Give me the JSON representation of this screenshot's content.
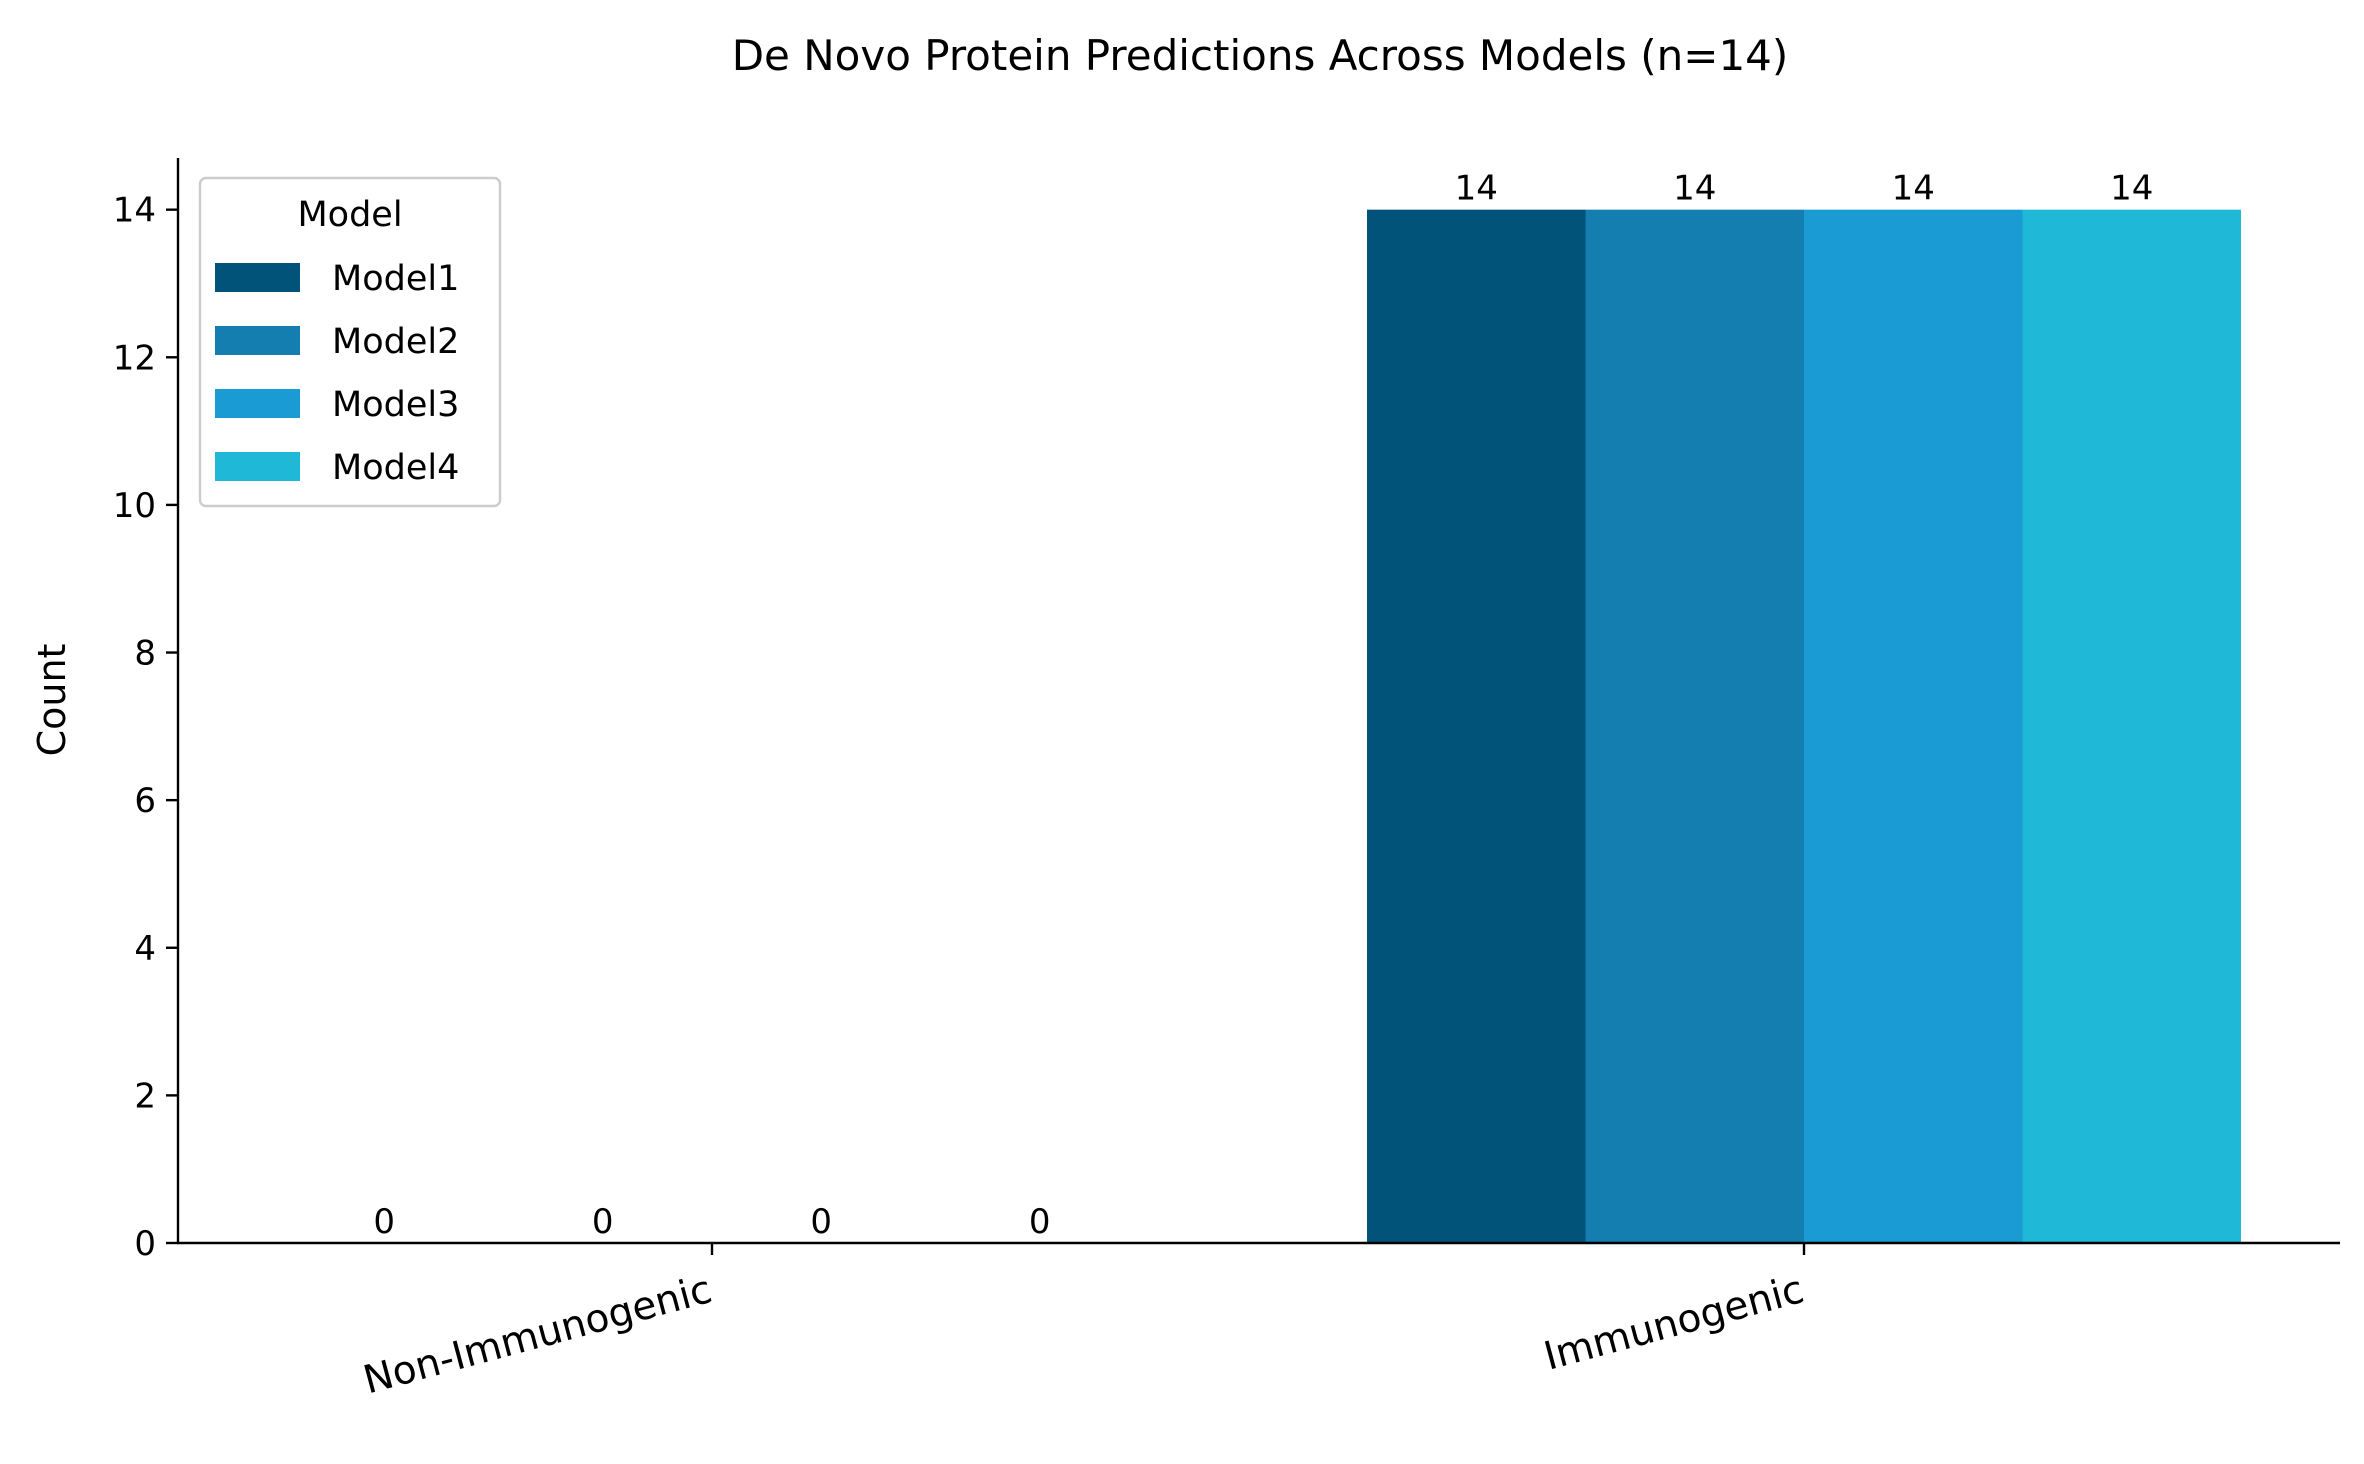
{
  "chart_data": {
    "type": "bar",
    "title": "De Novo Protein Predictions Across Models (n=14)",
    "xlabel": "",
    "ylabel": "Count",
    "categories": [
      "Non-Immunogenic",
      "Immunogenic"
    ],
    "series": [
      {
        "name": "Model1",
        "values": [
          0,
          14
        ],
        "color": "#01537A"
      },
      {
        "name": "Model2",
        "values": [
          0,
          14
        ],
        "color": "#137EAF"
      },
      {
        "name": "Model3",
        "values": [
          0,
          14
        ],
        "color": "#1A9BD3"
      },
      {
        "name": "Model4",
        "values": [
          0,
          14
        ],
        "color": "#1FB8D6"
      }
    ],
    "ylim": [
      0,
      14.7
    ],
    "yticks": [
      0,
      2,
      4,
      6,
      8,
      10,
      12,
      14
    ],
    "legend": {
      "title": "Model",
      "position": "top-left"
    },
    "grid": false,
    "data_labels": true
  }
}
